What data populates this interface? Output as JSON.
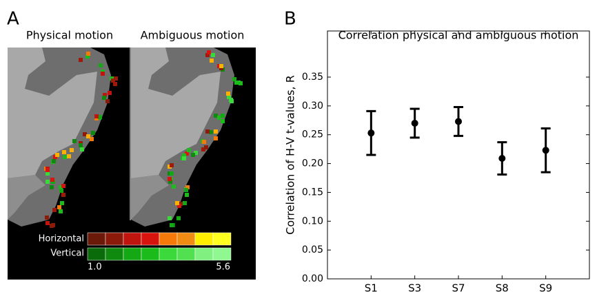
{
  "panel_a": {
    "letter": "A",
    "left_title": "Physical motion",
    "right_title": "Ambiguous motion",
    "colorbar": {
      "horizontal_label": "Horizontal",
      "vertical_label": "Vertical",
      "min": {
        "value": 1,
        "label": "1.0"
      },
      "max": 5.6
    }
  },
  "chart_data": {
    "type": "errorbar",
    "letter": "B",
    "title": "Correlation physical and ambiguous motion",
    "y_label": "Correlation of H-V t-values, R",
    "categories": [
      "S1",
      "S3",
      "S7",
      "S8",
      "S9"
    ],
    "values": [
      0.253,
      0.27,
      0.273,
      0.209,
      0.223
    ],
    "errors": [
      0.038,
      0.025,
      0.025,
      0.028,
      0.038
    ],
    "color": "#000000",
    "ylim": [
      0,
      0.43
    ],
    "yticks": [
      {
        "value": 0,
        "label": "0.00"
      },
      {
        "value": 0.05,
        "label": "0.05"
      },
      {
        "value": 0.1,
        "label": "0.10"
      },
      {
        "value": 0.15,
        "label": "0.15"
      },
      {
        "value": 0.2,
        "label": "0.20"
      },
      {
        "value": 0.25,
        "label": "0.25"
      },
      {
        "value": 0.3,
        "label": "0.30"
      },
      {
        "value": 0.35,
        "label": "0.35"
      }
    ]
  }
}
